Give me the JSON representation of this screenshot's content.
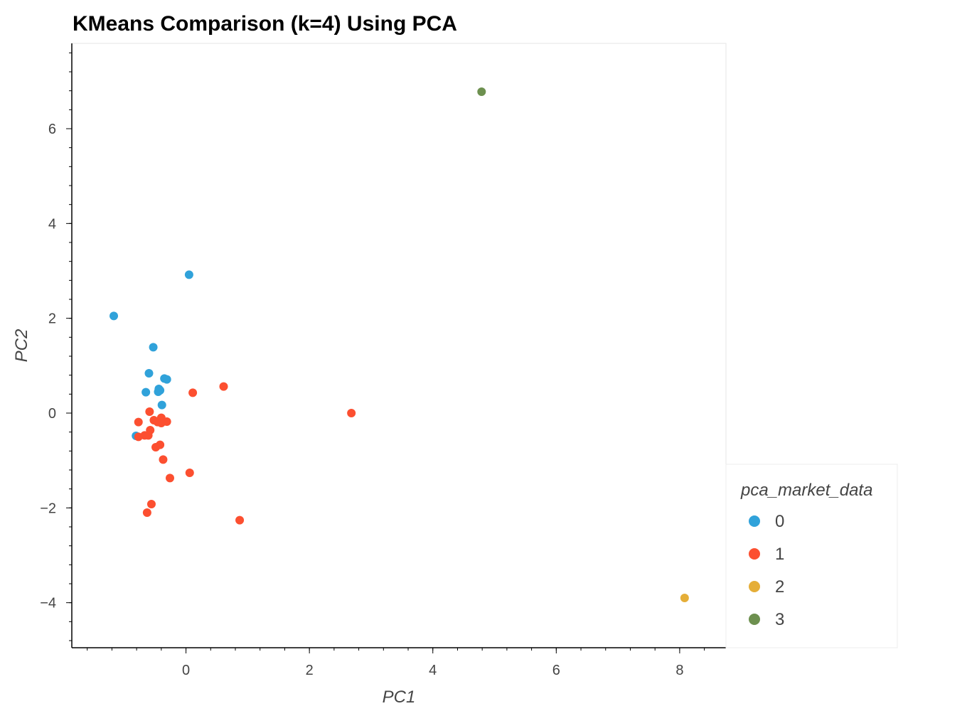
{
  "chart_data": {
    "type": "scatter",
    "title": "KMeans Comparison (k=4) Using PCA",
    "xlabel": "PC1",
    "ylabel": "PC2",
    "xlim": [
      -1.85,
      8.75
    ],
    "ylim": [
      -4.95,
      7.8
    ],
    "x_ticks": [
      0,
      2,
      4,
      6,
      8
    ],
    "y_ticks": [
      -4,
      -2,
      0,
      2,
      4,
      6
    ],
    "grid": false,
    "legend": {
      "title": "pca_market_data",
      "placement": "right",
      "entries": [
        {
          "label": "0",
          "color": "#30a2da"
        },
        {
          "label": "1",
          "color": "#fc4f30"
        },
        {
          "label": "2",
          "color": "#e5ae38"
        },
        {
          "label": "3",
          "color": "#6d904f"
        }
      ]
    },
    "series": [
      {
        "name": "0",
        "color": "#30a2da",
        "points": [
          [
            0.05,
            2.92
          ],
          [
            -1.17,
            2.05
          ],
          [
            -0.53,
            1.39
          ],
          [
            -0.6,
            0.84
          ],
          [
            -0.35,
            0.73
          ],
          [
            -0.31,
            0.71
          ],
          [
            -0.44,
            0.51
          ],
          [
            -0.42,
            0.48
          ],
          [
            -0.45,
            0.45
          ],
          [
            -0.65,
            0.44
          ],
          [
            -0.39,
            0.17
          ],
          [
            -0.81,
            -0.48
          ]
        ]
      },
      {
        "name": "1",
        "color": "#fc4f30",
        "points": [
          [
            0.61,
            0.56
          ],
          [
            0.11,
            0.43
          ],
          [
            2.68,
            0.0
          ],
          [
            -0.59,
            0.03
          ],
          [
            -0.4,
            -0.1
          ],
          [
            -0.52,
            -0.15
          ],
          [
            -0.31,
            -0.18
          ],
          [
            -0.46,
            -0.19
          ],
          [
            -0.4,
            -0.21
          ],
          [
            -0.77,
            -0.19
          ],
          [
            -0.58,
            -0.36
          ],
          [
            -0.67,
            -0.47
          ],
          [
            -0.61,
            -0.47
          ],
          [
            -0.77,
            -0.5
          ],
          [
            -0.42,
            -0.67
          ],
          [
            -0.49,
            -0.72
          ],
          [
            -0.37,
            -0.98
          ],
          [
            -0.26,
            -1.37
          ],
          [
            0.06,
            -1.26
          ],
          [
            -0.56,
            -1.92
          ],
          [
            -0.63,
            -2.1
          ],
          [
            0.87,
            -2.26
          ]
        ]
      },
      {
        "name": "2",
        "color": "#e5ae38",
        "points": [
          [
            8.08,
            -3.9
          ]
        ]
      },
      {
        "name": "3",
        "color": "#6d904f",
        "points": [
          [
            4.79,
            6.78
          ]
        ]
      }
    ]
  }
}
